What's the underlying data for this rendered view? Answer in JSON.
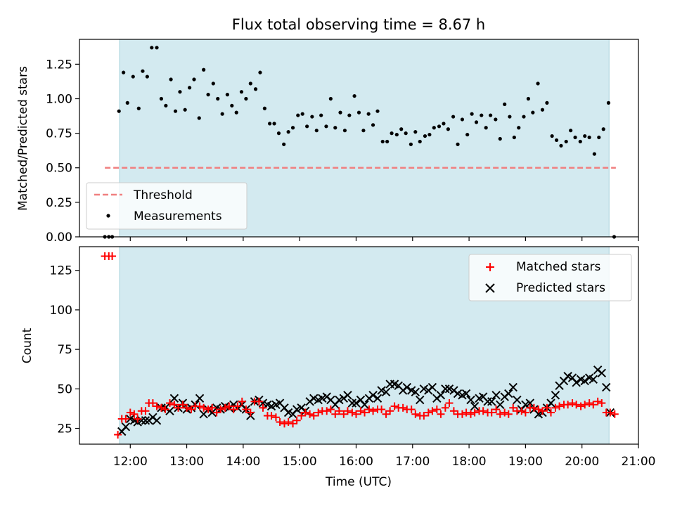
{
  "title": "Flux total observing time = 8.67 h",
  "colors": {
    "shade": "#d3eaf0",
    "shade_edge": "#a9d3dd",
    "threshold": "#f08080",
    "matched": "#ff0000",
    "predicted": "#000000"
  },
  "chart_data": [
    {
      "type": "scatter",
      "ylabel": "Matched/Predicted stars",
      "ylim": [
        0,
        1.43
      ],
      "yticks": [
        0.0,
        0.25,
        0.5,
        0.75,
        1.0,
        1.25
      ],
      "ytick_labels": [
        "0.00",
        "0.25",
        "0.50",
        "0.75",
        "1.00",
        "1.25"
      ],
      "xlim": [
        11.1,
        21.0
      ],
      "shaded_span": [
        11.81,
        20.48
      ],
      "legend_position": "lower-left",
      "threshold": {
        "name": "Threshold",
        "value": 0.5,
        "x_range": [
          11.55,
          20.6
        ]
      },
      "series": [
        {
          "name": "Measurements",
          "x": [
            11.55,
            11.62,
            11.68,
            11.8,
            11.88,
            11.95,
            12.05,
            12.15,
            12.22,
            12.3,
            12.38,
            12.47,
            12.55,
            12.63,
            12.72,
            12.8,
            12.88,
            12.97,
            13.05,
            13.13,
            13.22,
            13.3,
            13.38,
            13.47,
            13.55,
            13.63,
            13.72,
            13.8,
            13.88,
            13.97,
            14.05,
            14.13,
            14.22,
            14.3,
            14.38,
            14.47,
            14.55,
            14.63,
            14.72,
            14.8,
            14.88,
            14.97,
            15.05,
            15.13,
            15.22,
            15.3,
            15.38,
            15.47,
            15.55,
            15.63,
            15.72,
            15.8,
            15.88,
            15.97,
            16.05,
            16.13,
            16.22,
            16.3,
            16.38,
            16.47,
            16.55,
            16.63,
            16.72,
            16.8,
            16.88,
            16.97,
            17.05,
            17.13,
            17.22,
            17.3,
            17.38,
            17.47,
            17.55,
            17.63,
            17.72,
            17.8,
            17.88,
            17.97,
            18.05,
            18.13,
            18.22,
            18.3,
            18.38,
            18.47,
            18.55,
            18.63,
            18.72,
            18.8,
            18.88,
            18.97,
            19.05,
            19.13,
            19.22,
            19.3,
            19.38,
            19.47,
            19.55,
            19.63,
            19.72,
            19.8,
            19.88,
            19.97,
            20.05,
            20.13,
            20.22,
            20.3,
            20.38,
            20.47,
            20.57
          ],
          "y": [
            0,
            0,
            0,
            0.91,
            1.19,
            0.97,
            1.16,
            0.93,
            1.2,
            1.16,
            1.37,
            1.37,
            1.0,
            0.95,
            1.14,
            0.91,
            1.05,
            0.92,
            1.08,
            1.14,
            0.86,
            1.21,
            1.03,
            1.11,
            1.0,
            0.89,
            1.03,
            0.95,
            0.9,
            1.05,
            1.0,
            1.11,
            1.07,
            1.19,
            0.93,
            0.82,
            0.82,
            0.75,
            0.67,
            0.76,
            0.79,
            0.88,
            0.89,
            0.8,
            0.87,
            0.77,
            0.88,
            0.8,
            1.0,
            0.79,
            0.9,
            0.77,
            0.88,
            1.02,
            0.9,
            0.77,
            0.89,
            0.81,
            0.91,
            0.69,
            0.69,
            0.75,
            0.74,
            0.78,
            0.75,
            0.67,
            0.76,
            0.69,
            0.73,
            0.74,
            0.79,
            0.8,
            0.82,
            0.78,
            0.87,
            0.67,
            0.85,
            0.74,
            0.89,
            0.83,
            0.88,
            0.79,
            0.88,
            0.85,
            0.71,
            0.96,
            0.87,
            0.72,
            0.79,
            0.87,
            1.0,
            0.9,
            1.11,
            0.92,
            0.97,
            0.73,
            0.7,
            0.66,
            0.69,
            0.77,
            0.72,
            0.69,
            0.73,
            0.72,
            0.6,
            0.72,
            0.78,
            0.97,
            0
          ]
        }
      ]
    },
    {
      "type": "scatter",
      "xlabel": "Time (UTC)",
      "ylabel": "Count",
      "ylim": [
        15,
        140
      ],
      "yticks": [
        25,
        50,
        75,
        100,
        125
      ],
      "ytick_labels": [
        "25",
        "50",
        "75",
        "100",
        "125"
      ],
      "xlim": [
        11.1,
        21.0
      ],
      "xticks": [
        12,
        13,
        14,
        15,
        16,
        17,
        18,
        19,
        20,
        21
      ],
      "xtick_labels": [
        "12:00",
        "13:00",
        "14:00",
        "15:00",
        "16:00",
        "17:00",
        "18:00",
        "19:00",
        "20:00",
        "21:00"
      ],
      "shaded_span": [
        11.81,
        20.48
      ],
      "legend_position": "upper-right",
      "series": [
        {
          "name": "Matched stars",
          "marker": "plus",
          "x": [
            11.55,
            11.62,
            11.68,
            11.78,
            11.85,
            11.92,
            12.0,
            12.07,
            12.13,
            12.2,
            12.27,
            12.33,
            12.4,
            12.47,
            12.55,
            12.62,
            12.7,
            12.78,
            12.85,
            12.93,
            13.0,
            13.08,
            13.15,
            13.23,
            13.3,
            13.38,
            13.45,
            13.53,
            13.6,
            13.68,
            13.75,
            13.83,
            13.9,
            13.98,
            14.05,
            14.13,
            14.2,
            14.28,
            14.35,
            14.43,
            14.5,
            14.58,
            14.65,
            14.73,
            14.8,
            14.88,
            14.95,
            15.03,
            15.1,
            15.18,
            15.25,
            15.33,
            15.4,
            15.48,
            15.55,
            15.63,
            15.7,
            15.78,
            15.85,
            15.93,
            16.0,
            16.08,
            16.15,
            16.23,
            16.3,
            16.38,
            16.45,
            16.53,
            16.6,
            16.68,
            16.75,
            16.83,
            16.9,
            16.98,
            17.05,
            17.13,
            17.2,
            17.28,
            17.35,
            17.43,
            17.5,
            17.58,
            17.65,
            17.73,
            17.8,
            17.88,
            17.95,
            18.03,
            18.1,
            18.18,
            18.25,
            18.33,
            18.4,
            18.48,
            18.55,
            18.63,
            18.7,
            18.78,
            18.85,
            18.93,
            19.0,
            19.08,
            19.15,
            19.23,
            19.3,
            19.38,
            19.45,
            19.53,
            19.6,
            19.68,
            19.75,
            19.83,
            19.9,
            19.98,
            20.05,
            20.13,
            20.2,
            20.28,
            20.35,
            20.43,
            20.5,
            20.58
          ],
          "y": [
            134,
            134,
            134,
            21,
            31,
            31,
            35,
            34,
            31,
            36,
            36,
            41,
            41,
            39,
            38,
            37,
            41,
            40,
            38,
            40,
            38,
            37,
            39,
            39,
            38,
            37,
            38,
            35,
            37,
            38,
            39,
            37,
            39,
            42,
            37,
            35,
            42,
            42,
            38,
            33,
            33,
            32,
            29,
            28,
            29,
            28,
            30,
            33,
            35,
            34,
            33,
            35,
            36,
            36,
            37,
            34,
            36,
            34,
            36,
            35,
            34,
            36,
            35,
            37,
            36,
            37,
            37,
            34,
            36,
            39,
            38,
            38,
            37,
            37,
            34,
            33,
            33,
            35,
            36,
            37,
            34,
            38,
            41,
            36,
            34,
            34,
            35,
            34,
            35,
            36,
            36,
            35,
            35,
            37,
            34,
            35,
            34,
            38,
            36,
            36,
            35,
            38,
            38,
            37,
            36,
            38,
            35,
            38,
            39,
            40,
            40,
            41,
            40,
            39,
            40,
            41,
            40,
            42,
            41,
            35,
            35,
            34
          ]
        },
        {
          "name": "Predicted stars",
          "marker": "x",
          "x": [
            11.85,
            11.92,
            12.0,
            12.07,
            12.13,
            12.2,
            12.27,
            12.33,
            12.4,
            12.47,
            12.55,
            12.62,
            12.7,
            12.78,
            12.85,
            12.93,
            13.0,
            13.08,
            13.15,
            13.23,
            13.3,
            13.38,
            13.45,
            13.53,
            13.6,
            13.68,
            13.75,
            13.83,
            13.9,
            13.98,
            14.05,
            14.13,
            14.2,
            14.28,
            14.35,
            14.43,
            14.5,
            14.58,
            14.65,
            14.73,
            14.8,
            14.88,
            14.95,
            15.03,
            15.1,
            15.18,
            15.25,
            15.33,
            15.4,
            15.48,
            15.55,
            15.63,
            15.7,
            15.78,
            15.85,
            15.93,
            16.0,
            16.08,
            16.15,
            16.23,
            16.3,
            16.38,
            16.45,
            16.53,
            16.6,
            16.68,
            16.75,
            16.83,
            16.9,
            16.98,
            17.05,
            17.13,
            17.2,
            17.28,
            17.35,
            17.43,
            17.5,
            17.58,
            17.65,
            17.73,
            17.8,
            17.88,
            17.95,
            18.03,
            18.1,
            18.18,
            18.25,
            18.33,
            18.4,
            18.48,
            18.55,
            18.63,
            18.7,
            18.78,
            18.85,
            18.93,
            19.0,
            19.08,
            19.15,
            19.23,
            19.3,
            19.38,
            19.45,
            19.53,
            19.6,
            19.68,
            19.75,
            19.83,
            19.9,
            19.98,
            20.05,
            20.13,
            20.2,
            20.28,
            20.35,
            20.43,
            20.5
          ],
          "y": [
            23,
            26,
            31,
            30,
            29,
            30,
            30,
            30,
            32,
            30,
            38,
            38,
            36,
            44,
            38,
            41,
            37,
            38,
            40,
            44,
            34,
            37,
            35,
            38,
            37,
            39,
            38,
            40,
            38,
            40,
            37,
            33,
            42,
            43,
            41,
            40,
            39,
            40,
            41,
            38,
            35,
            34,
            37,
            38,
            36,
            42,
            44,
            43,
            44,
            45,
            43,
            40,
            43,
            44,
            46,
            41,
            41,
            43,
            40,
            44,
            46,
            44,
            49,
            48,
            53,
            53,
            52,
            49,
            51,
            49,
            48,
            43,
            50,
            49,
            51,
            44,
            46,
            50,
            50,
            49,
            47,
            46,
            47,
            43,
            39,
            44,
            45,
            42,
            42,
            46,
            40,
            45,
            47,
            51,
            43,
            37,
            40,
            41,
            37,
            34,
            35,
            38,
            41,
            46,
            52,
            55,
            58,
            57,
            54,
            56,
            55,
            57,
            56,
            62,
            60,
            51,
            35
          ]
        }
      ]
    }
  ]
}
